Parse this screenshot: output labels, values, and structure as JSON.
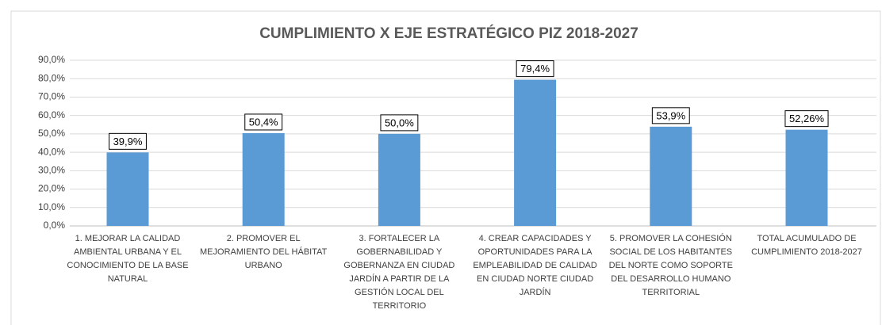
{
  "chart_data": {
    "type": "bar",
    "title": "CUMPLIMIENTO X EJE ESTRATÉGICO PIZ 2018-2027",
    "categories": [
      "1. MEJORAR LA CALIDAD AMBIENTAL URBANA Y EL CONOCIMIENTO DE LA BASE NATURAL",
      "2. PROMOVER EL MEJORAMIENTO DEL HÁBITAT URBANO",
      "3. FORTALECER LA GOBERNABILIDAD Y GOBERNANZA EN CIUDAD JARDÍN A PARTIR DE LA GESTIÓN LOCAL DEL TERRITORIO",
      "4. CREAR CAPACIDADES Y OPORTUNIDADES PARA LA EMPLEABILIDAD DE CALIDAD EN CIUDAD NORTE CIUDAD JARDÍN",
      "5. PROMOVER LA COHESIÓN SOCIAL DE LOS HABITANTES DEL NORTE COMO SOPORTE DEL DESARROLLO HUMANO TERRITORIAL",
      "TOTAL ACUMULADO DE CUMPLIMIENTO 2018-2027"
    ],
    "values": [
      39.9,
      50.4,
      50.0,
      79.4,
      53.9,
      52.26
    ],
    "value_labels": [
      "39,9%",
      "50,4%",
      "50,0%",
      "79,4%",
      "53,9%",
      "52,26%"
    ],
    "color": "#5b9bd5",
    "ylim": [
      0,
      90
    ],
    "yticks": [
      {
        "value": 0,
        "label": "0,0%"
      },
      {
        "value": 10,
        "label": "10,0%"
      },
      {
        "value": 20,
        "label": "20,0%"
      },
      {
        "value": 30,
        "label": "30,0%"
      },
      {
        "value": 40,
        "label": "40,0%"
      },
      {
        "value": 50,
        "label": "50,0%"
      },
      {
        "value": 60,
        "label": "60,0%"
      },
      {
        "value": 70,
        "label": "70,0%"
      },
      {
        "value": 80,
        "label": "80,0%"
      },
      {
        "value": 90,
        "label": "90,0%"
      }
    ],
    "grid": true
  }
}
